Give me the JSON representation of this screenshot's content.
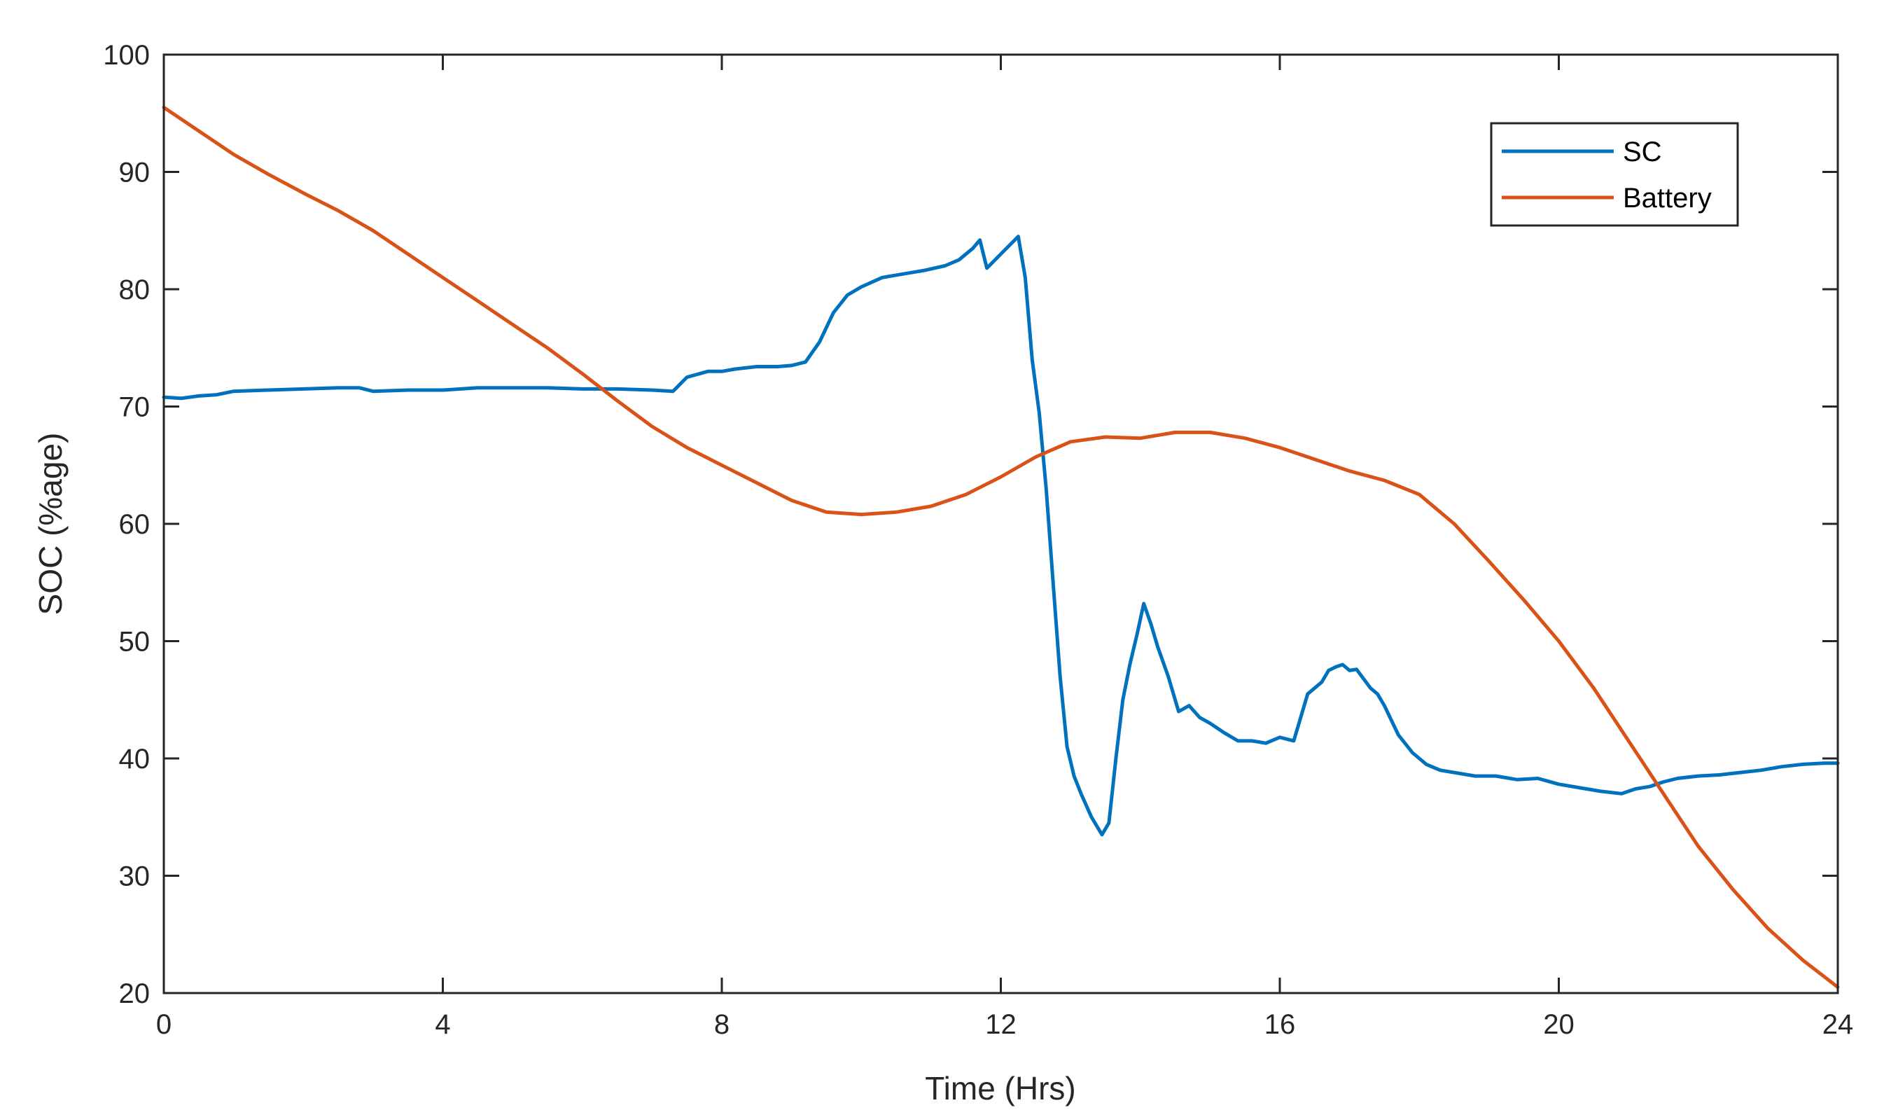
{
  "chart_data": {
    "type": "line",
    "title": "",
    "xlabel": "Time (Hrs)",
    "ylabel": "SOC (%age)",
    "xlim": [
      0,
      24
    ],
    "ylim": [
      20,
      100
    ],
    "xticks": [
      0,
      4,
      8,
      12,
      16,
      20,
      24
    ],
    "yticks": [
      20,
      30,
      40,
      50,
      60,
      70,
      80,
      90,
      100
    ],
    "grid": false,
    "legend_position": "top-right",
    "series": [
      {
        "name": "SC",
        "color": "#0072BD",
        "x": [
          0,
          0.25,
          0.5,
          0.75,
          1.0,
          1.5,
          2.0,
          2.5,
          2.8,
          3.0,
          3.5,
          4.0,
          4.5,
          5.0,
          5.5,
          6.0,
          6.5,
          7.0,
          7.3,
          7.5,
          7.8,
          8.0,
          8.2,
          8.5,
          8.8,
          9.0,
          9.2,
          9.4,
          9.6,
          9.8,
          10.0,
          10.3,
          10.6,
          10.9,
          11.2,
          11.4,
          11.6,
          11.7,
          11.8,
          12.0,
          12.2,
          12.25,
          12.35,
          12.45,
          12.55,
          12.65,
          12.75,
          12.85,
          12.95,
          13.05,
          13.15,
          13.3,
          13.45,
          13.55,
          13.65,
          13.75,
          13.85,
          13.95,
          14.05,
          14.15,
          14.25,
          14.4,
          14.55,
          14.7,
          14.85,
          15.0,
          15.2,
          15.4,
          15.6,
          15.8,
          16.0,
          16.2,
          16.4,
          16.6,
          16.7,
          16.8,
          16.9,
          17.0,
          17.1,
          17.2,
          17.3,
          17.4,
          17.5,
          17.7,
          17.9,
          18.1,
          18.3,
          18.5,
          18.8,
          19.1,
          19.4,
          19.7,
          20.0,
          20.3,
          20.6,
          20.9,
          21.1,
          21.3,
          21.5,
          21.7,
          22.0,
          22.3,
          22.6,
          22.9,
          23.2,
          23.5,
          23.8,
          24.0
        ],
        "values": [
          70.8,
          70.7,
          70.9,
          71.0,
          71.3,
          71.4,
          71.5,
          71.6,
          71.6,
          71.3,
          71.4,
          71.4,
          71.6,
          71.6,
          71.6,
          71.5,
          71.5,
          71.4,
          71.3,
          72.5,
          73.0,
          73.0,
          73.2,
          73.4,
          73.4,
          73.5,
          73.8,
          75.5,
          78.0,
          79.5,
          80.2,
          81.0,
          81.3,
          81.6,
          82.0,
          82.5,
          83.5,
          84.2,
          81.8,
          83.0,
          84.2,
          84.5,
          81.0,
          74.0,
          69.5,
          63.0,
          55.0,
          47.0,
          41.0,
          38.5,
          37.0,
          35.0,
          33.5,
          34.5,
          40.0,
          45.0,
          48.0,
          50.5,
          53.2,
          51.5,
          49.5,
          47.0,
          44.0,
          44.5,
          43.5,
          43.0,
          42.2,
          41.5,
          41.5,
          41.3,
          41.8,
          41.5,
          45.5,
          46.5,
          47.5,
          47.8,
          48.0,
          47.5,
          47.6,
          46.8,
          46.0,
          45.5,
          44.5,
          42.0,
          40.5,
          39.5,
          39.0,
          38.8,
          38.5,
          38.5,
          38.2,
          38.3,
          37.8,
          37.5,
          37.2,
          37.0,
          37.4,
          37.6,
          38.0,
          38.3,
          38.5,
          38.6,
          38.8,
          39.0,
          39.3,
          39.5,
          39.6,
          39.6
        ]
      },
      {
        "name": "Battery",
        "color": "#D95319",
        "x": [
          0,
          0.5,
          1.0,
          1.5,
          2.0,
          2.5,
          3.0,
          3.5,
          4.0,
          4.5,
          5.0,
          5.5,
          6.0,
          6.5,
          7.0,
          7.5,
          8.0,
          8.5,
          9.0,
          9.5,
          10.0,
          10.5,
          11.0,
          11.5,
          12.0,
          12.5,
          13.0,
          13.5,
          14.0,
          14.5,
          15.0,
          15.5,
          16.0,
          16.5,
          17.0,
          17.5,
          18.0,
          18.5,
          19.0,
          19.5,
          20.0,
          20.5,
          21.0,
          21.5,
          22.0,
          22.5,
          23.0,
          23.5,
          24.0
        ],
        "values": [
          95.5,
          93.5,
          91.5,
          89.8,
          88.2,
          86.7,
          85.0,
          83.0,
          81.0,
          79.0,
          77.0,
          75.0,
          72.8,
          70.5,
          68.3,
          66.5,
          65.0,
          63.5,
          62.0,
          61.0,
          60.8,
          61.0,
          61.5,
          62.5,
          64.0,
          65.7,
          67.0,
          67.4,
          67.3,
          67.8,
          67.8,
          67.3,
          66.5,
          65.5,
          64.5,
          63.7,
          62.5,
          60.0,
          56.8,
          53.5,
          50.0,
          46.0,
          41.5,
          37.0,
          32.5,
          28.8,
          25.5,
          22.8,
          20.5
        ]
      }
    ]
  }
}
